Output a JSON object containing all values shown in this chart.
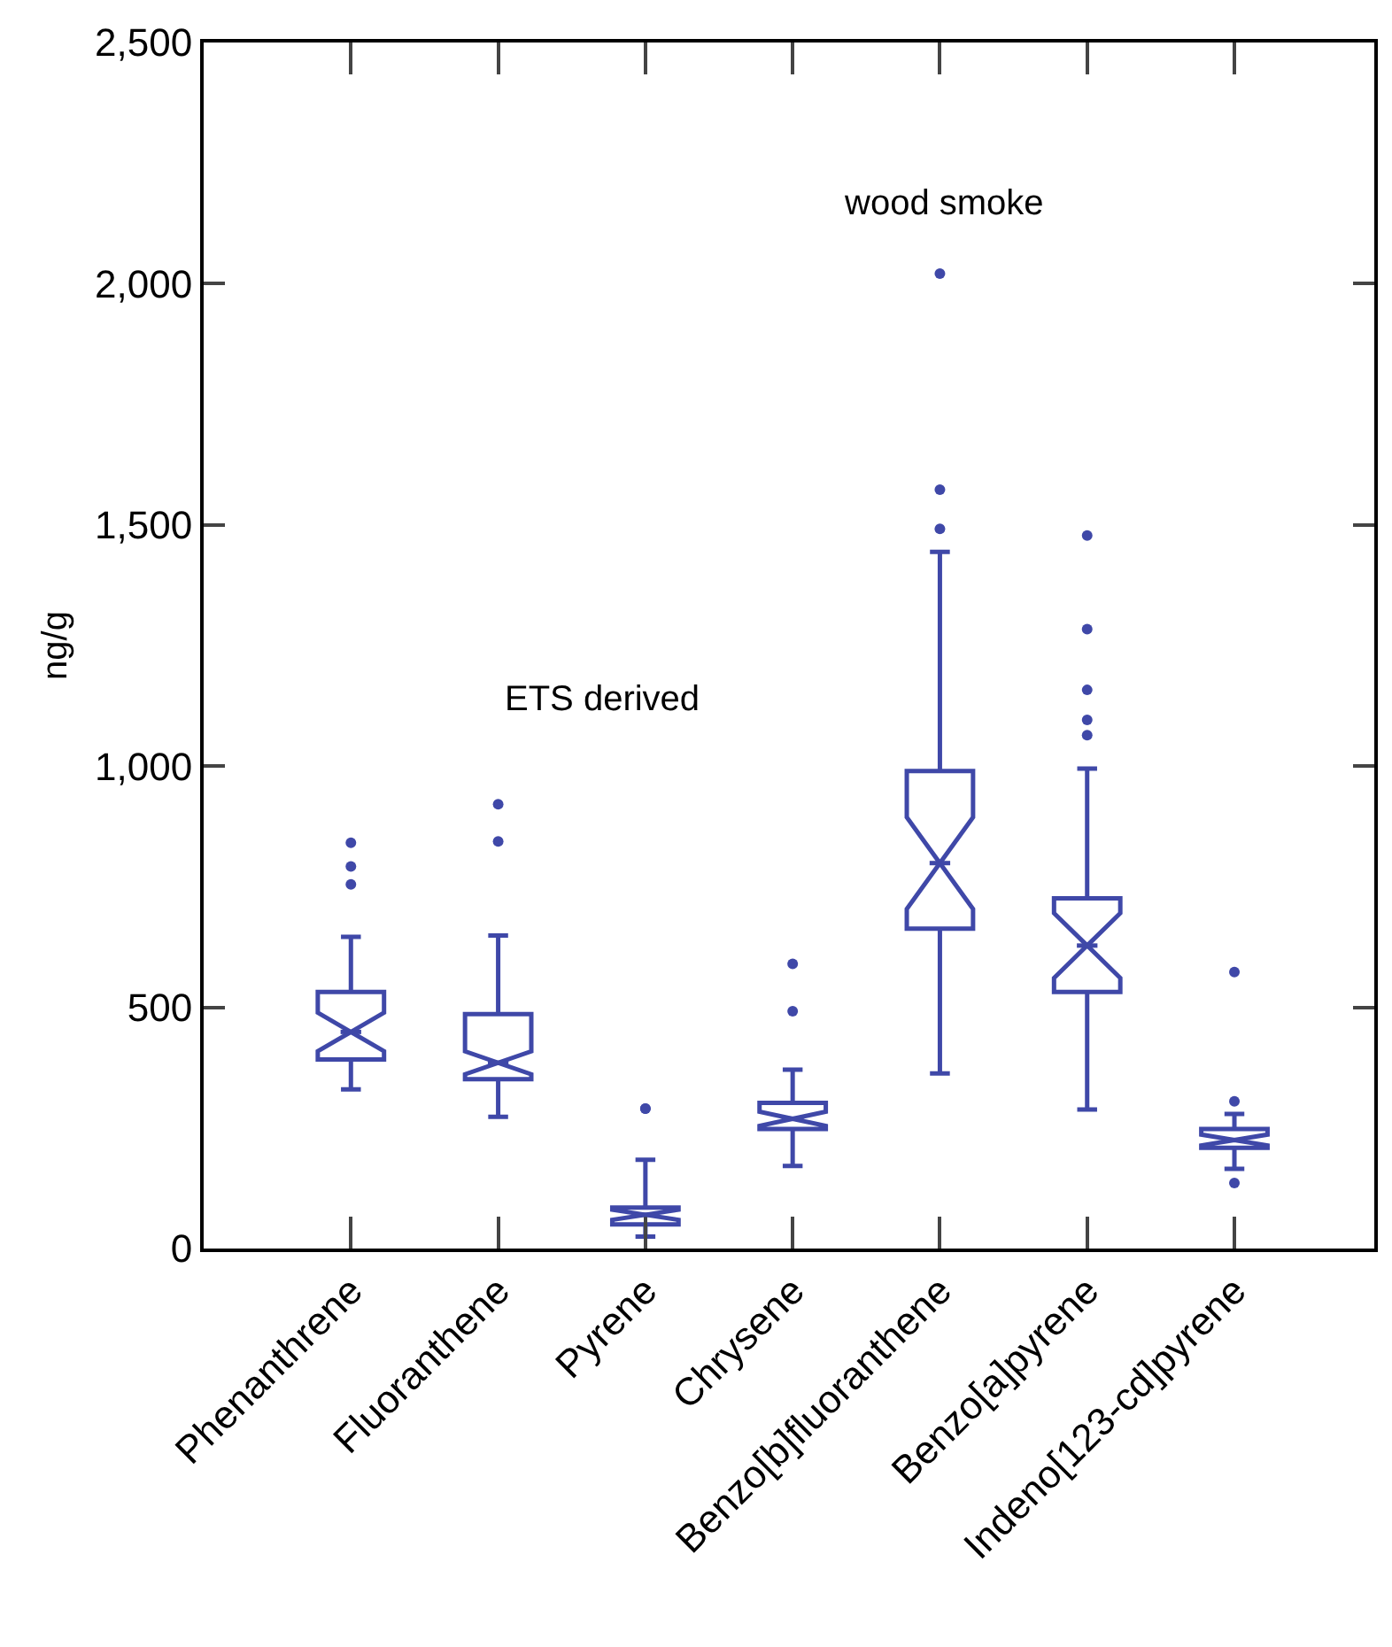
{
  "chart_data": {
    "type": "box",
    "ylabel": "ng/g",
    "categories": [
      "Phenanthrene",
      "Fluoranthene",
      "Pyrene",
      "Chrysene",
      "Benzo[b]fluoranthene",
      "Benzo[a]pyrene",
      "Indeno[123-cd]pyrene"
    ],
    "color": "#3f48a8",
    "boxes": [
      {
        "low": 330,
        "q1": 392,
        "median": 449,
        "q3": 532,
        "high": 646,
        "outliers": [
          755,
          792,
          841
        ]
      },
      {
        "low": 273,
        "q1": 351,
        "median": 385,
        "q3": 486,
        "high": 649,
        "outliers": [
          844,
          921
        ]
      },
      {
        "low": 25,
        "q1": 50,
        "median": 70,
        "q3": 85,
        "high": 184,
        "outliers": [
          290,
          290
        ]
      },
      {
        "low": 171,
        "q1": 248,
        "median": 269,
        "q3": 302,
        "high": 371,
        "outliers": [
          492,
          590
        ]
      },
      {
        "low": 363,
        "q1": 663,
        "median": 799,
        "q3": 990,
        "high": 1444,
        "outliers": [
          1492,
          1573,
          2021
        ]
      },
      {
        "low": 288,
        "q1": 532,
        "median": 628,
        "q3": 726,
        "high": 995,
        "outliers": [
          1064,
          1096,
          1158,
          1284,
          1478
        ]
      },
      {
        "low": 165,
        "q1": 209,
        "median": 225,
        "q3": 248,
        "high": 279,
        "outliers": [
          136,
          305,
          573
        ]
      }
    ],
    "ylim": [
      0,
      2500
    ],
    "yticks": [
      0,
      {
        "value": 500,
        "label": "500"
      },
      {
        "value": 1000,
        "label": "1,000"
      },
      {
        "value": 1500,
        "label": "1,500"
      },
      {
        "value": 2000,
        "label": "2,000"
      },
      {
        "value": 2500,
        "label": "2,500"
      }
    ],
    "annotations": [
      "ETS derived",
      "wood smoke"
    ],
    "marker": "circle"
  }
}
